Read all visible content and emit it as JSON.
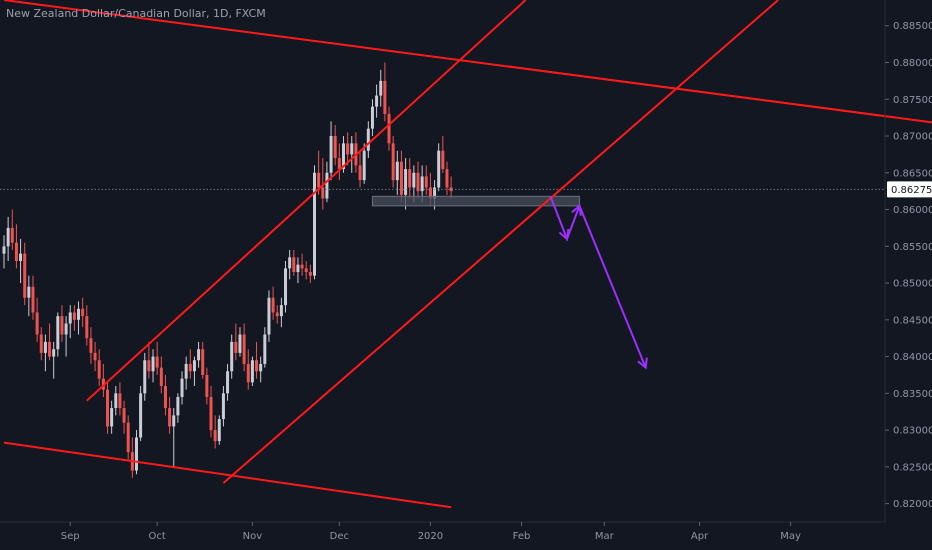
{
  "chart_data": {
    "type": "candlestick",
    "title": "New Zealand Dollar/Canadian Dollar, 1D, FXCM",
    "current_price": 0.86275,
    "y_axis": {
      "range": [
        0.8175,
        0.8885
      ],
      "ticks": [
        "0.88500",
        "0.88000",
        "0.87500",
        "0.87000",
        "0.86500",
        "0.86000",
        "0.85500",
        "0.85000",
        "0.84500",
        "0.84000",
        "0.83500",
        "0.83000",
        "0.82500",
        "0.82000"
      ],
      "tick_values": [
        0.885,
        0.88,
        0.875,
        0.87,
        0.865,
        0.86,
        0.855,
        0.85,
        0.845,
        0.84,
        0.835,
        0.83,
        0.825,
        0.82
      ]
    },
    "x_axis": {
      "labels": [
        "Sep",
        "Oct",
        "Nov",
        "Dec",
        "2020",
        "Feb",
        "Mar",
        "Apr",
        "May"
      ],
      "label_x_index": [
        16,
        37,
        60,
        81,
        103,
        125,
        145,
        168,
        190
      ]
    },
    "colors": {
      "background": "#131722",
      "up_candle": "#c9cdd6",
      "down_candle": "#ef5350",
      "trendline": "#ff1a1a",
      "forecast_arrow": "#9b30ff",
      "support_zone": "#4a4f5c"
    },
    "candles": {
      "columns": [
        "open",
        "high",
        "low",
        "close"
      ],
      "rows": [
        [
          0.854,
          0.8565,
          0.852,
          0.855
        ],
        [
          0.855,
          0.859,
          0.853,
          0.8575
        ],
        [
          0.8575,
          0.86,
          0.8545,
          0.8555
        ],
        [
          0.8555,
          0.858,
          0.852,
          0.853
        ],
        [
          0.853,
          0.856,
          0.85,
          0.854
        ],
        [
          0.854,
          0.8555,
          0.847,
          0.848
        ],
        [
          0.848,
          0.851,
          0.8455,
          0.8495
        ],
        [
          0.8495,
          0.851,
          0.845,
          0.846
        ],
        [
          0.846,
          0.848,
          0.842,
          0.843
        ],
        [
          0.843,
          0.844,
          0.8395,
          0.8405
        ],
        [
          0.8405,
          0.843,
          0.838,
          0.842
        ],
        [
          0.842,
          0.8445,
          0.8395,
          0.84
        ],
        [
          0.84,
          0.842,
          0.837,
          0.841
        ],
        [
          0.841,
          0.846,
          0.84,
          0.8455
        ],
        [
          0.8455,
          0.847,
          0.842,
          0.843
        ],
        [
          0.843,
          0.8455,
          0.84,
          0.8445
        ],
        [
          0.8445,
          0.847,
          0.8425,
          0.846
        ],
        [
          0.846,
          0.847,
          0.8435,
          0.845
        ],
        [
          0.845,
          0.8475,
          0.843,
          0.8465
        ],
        [
          0.8465,
          0.848,
          0.844,
          0.8455
        ],
        [
          0.8455,
          0.847,
          0.8415,
          0.8425
        ],
        [
          0.8425,
          0.844,
          0.839,
          0.8405
        ],
        [
          0.8405,
          0.842,
          0.838,
          0.8395
        ],
        [
          0.8395,
          0.841,
          0.836,
          0.837
        ],
        [
          0.837,
          0.839,
          0.8345,
          0.8355
        ],
        [
          0.8355,
          0.8365,
          0.8295,
          0.8305
        ],
        [
          0.8305,
          0.834,
          0.8295,
          0.833
        ],
        [
          0.833,
          0.836,
          0.832,
          0.835
        ],
        [
          0.835,
          0.8365,
          0.832,
          0.833
        ],
        [
          0.833,
          0.834,
          0.8295,
          0.831
        ],
        [
          0.831,
          0.832,
          0.826,
          0.827
        ],
        [
          0.827,
          0.829,
          0.8235,
          0.8245
        ],
        [
          0.8245,
          0.83,
          0.824,
          0.829
        ],
        [
          0.829,
          0.836,
          0.8285,
          0.835
        ],
        [
          0.835,
          0.8405,
          0.834,
          0.8395
        ],
        [
          0.8395,
          0.842,
          0.837,
          0.838
        ],
        [
          0.838,
          0.841,
          0.8365,
          0.84
        ],
        [
          0.84,
          0.842,
          0.8375,
          0.8385
        ],
        [
          0.8385,
          0.84,
          0.835,
          0.836
        ],
        [
          0.836,
          0.8375,
          0.832,
          0.833
        ],
        [
          0.833,
          0.8345,
          0.8295,
          0.8305
        ],
        [
          0.8305,
          0.833,
          0.825,
          0.832
        ],
        [
          0.832,
          0.835,
          0.831,
          0.8345
        ],
        [
          0.8345,
          0.838,
          0.8335,
          0.837
        ],
        [
          0.837,
          0.84,
          0.8355,
          0.839
        ],
        [
          0.839,
          0.841,
          0.837,
          0.838
        ],
        [
          0.838,
          0.84,
          0.836,
          0.8395
        ],
        [
          0.8395,
          0.842,
          0.8385,
          0.841
        ],
        [
          0.841,
          0.842,
          0.837,
          0.8375
        ],
        [
          0.8375,
          0.8385,
          0.8335,
          0.8345
        ],
        [
          0.8345,
          0.836,
          0.829,
          0.83
        ],
        [
          0.83,
          0.832,
          0.8275,
          0.8285
        ],
        [
          0.8285,
          0.832,
          0.828,
          0.8315
        ],
        [
          0.8315,
          0.836,
          0.8305,
          0.835
        ],
        [
          0.835,
          0.839,
          0.834,
          0.838
        ],
        [
          0.838,
          0.843,
          0.837,
          0.842
        ],
        [
          0.842,
          0.8445,
          0.8395,
          0.8405
        ],
        [
          0.8405,
          0.844,
          0.84,
          0.843
        ],
        [
          0.843,
          0.8445,
          0.838,
          0.839
        ],
        [
          0.839,
          0.841,
          0.8355,
          0.8365
        ],
        [
          0.8365,
          0.84,
          0.836,
          0.8395
        ],
        [
          0.8395,
          0.842,
          0.837,
          0.838
        ],
        [
          0.838,
          0.84,
          0.8365,
          0.839
        ],
        [
          0.839,
          0.844,
          0.8385,
          0.843
        ],
        [
          0.843,
          0.849,
          0.842,
          0.848
        ],
        [
          0.848,
          0.8495,
          0.845,
          0.846
        ],
        [
          0.846,
          0.847,
          0.8445,
          0.8455
        ],
        [
          0.8455,
          0.848,
          0.844,
          0.847
        ],
        [
          0.847,
          0.853,
          0.846,
          0.852
        ],
        [
          0.852,
          0.8545,
          0.8505,
          0.8535
        ],
        [
          0.8535,
          0.8545,
          0.851,
          0.8515
        ],
        [
          0.8515,
          0.8535,
          0.85,
          0.8525
        ],
        [
          0.8525,
          0.854,
          0.851,
          0.852
        ],
        [
          0.852,
          0.853,
          0.8505,
          0.8515
        ],
        [
          0.8515,
          0.8525,
          0.85,
          0.851
        ],
        [
          0.851,
          0.866,
          0.8505,
          0.865
        ],
        [
          0.865,
          0.868,
          0.862,
          0.863
        ],
        [
          0.863,
          0.867,
          0.86,
          0.8615
        ],
        [
          0.8615,
          0.8665,
          0.861,
          0.865
        ],
        [
          0.865,
          0.872,
          0.864,
          0.87
        ],
        [
          0.87,
          0.8715,
          0.866,
          0.867
        ],
        [
          0.867,
          0.869,
          0.864,
          0.8655
        ],
        [
          0.8655,
          0.87,
          0.865,
          0.869
        ],
        [
          0.869,
          0.8705,
          0.866,
          0.8675
        ],
        [
          0.8675,
          0.87,
          0.865,
          0.869
        ],
        [
          0.869,
          0.8705,
          0.865,
          0.866
        ],
        [
          0.866,
          0.868,
          0.863,
          0.864
        ],
        [
          0.864,
          0.869,
          0.8635,
          0.868
        ],
        [
          0.868,
          0.872,
          0.867,
          0.871
        ],
        [
          0.871,
          0.875,
          0.87,
          0.874
        ],
        [
          0.874,
          0.877,
          0.8725,
          0.8755
        ],
        [
          0.8755,
          0.879,
          0.874,
          0.8775
        ],
        [
          0.8775,
          0.88,
          0.872,
          0.873
        ],
        [
          0.873,
          0.874,
          0.868,
          0.869
        ],
        [
          0.869,
          0.87,
          0.863,
          0.864
        ],
        [
          0.864,
          0.868,
          0.862,
          0.8665
        ],
        [
          0.8665,
          0.868,
          0.861,
          0.862
        ],
        [
          0.862,
          0.867,
          0.86,
          0.8655
        ],
        [
          0.8655,
          0.867,
          0.8615,
          0.863
        ],
        [
          0.863,
          0.866,
          0.861,
          0.865
        ],
        [
          0.865,
          0.8665,
          0.8615,
          0.8625
        ],
        [
          0.8625,
          0.866,
          0.861,
          0.8645
        ],
        [
          0.8645,
          0.866,
          0.862,
          0.863
        ],
        [
          0.863,
          0.865,
          0.8605,
          0.8615
        ],
        [
          0.8615,
          0.864,
          0.86,
          0.863
        ],
        [
          0.863,
          0.869,
          0.8625,
          0.868
        ],
        [
          0.868,
          0.87,
          0.865,
          0.8655
        ],
        [
          0.8655,
          0.8665,
          0.862,
          0.863
        ],
        [
          0.863,
          0.8645,
          0.8615,
          0.8625
        ]
      ]
    },
    "drawings": {
      "support_zone": {
        "start_index": 89,
        "end_index": 139,
        "top": 0.8618,
        "bottom": 0.8605
      },
      "trendlines": [
        {
          "name": "upper-channel-line",
          "from": [
            0,
            0.8885
          ],
          "to": [
            229,
            0.8715
          ]
        },
        {
          "name": "lower-channel-line",
          "from": [
            0,
            0.8283
          ],
          "to": [
            108,
            0.8195
          ]
        },
        {
          "name": "rising-channel-top",
          "from": [
            20,
            0.834
          ],
          "to": [
            126,
            0.8885
          ]
        },
        {
          "name": "rising-channel-bottom",
          "from": [
            53,
            0.8228
          ],
          "to": [
            187,
            0.8885
          ]
        }
      ],
      "forecast_path": [
        [
          132,
          0.8618
        ],
        [
          136,
          0.856
        ],
        [
          139,
          0.8605
        ],
        [
          155,
          0.8385
        ]
      ]
    }
  }
}
